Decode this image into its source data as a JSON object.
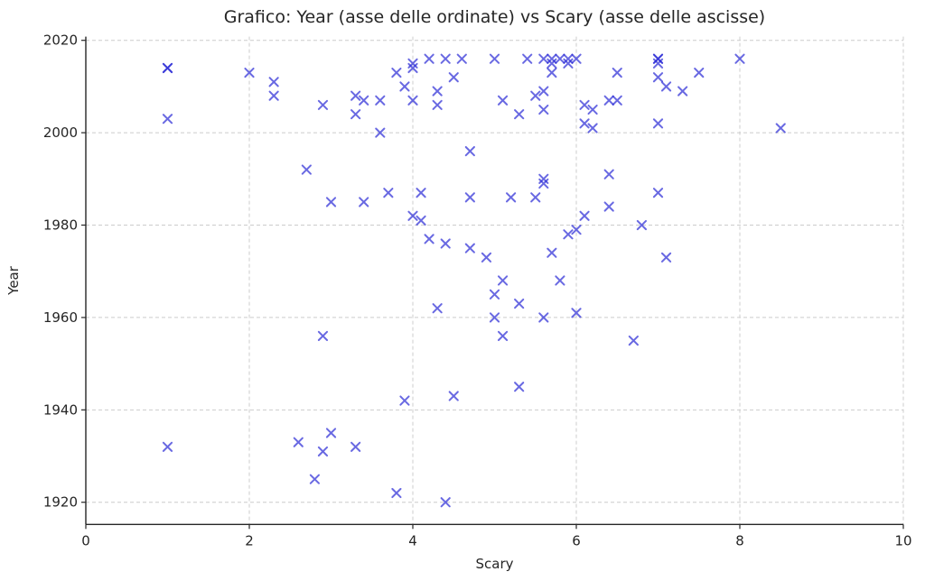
{
  "chart_data": {
    "type": "scatter",
    "title": "Grafico: Year (asse delle ordinate) vs Scary (asse delle ascisse)",
    "xlabel": "Scary",
    "ylabel": "Year",
    "xlim": [
      0,
      10
    ],
    "ylim": [
      1915.2,
      2020.8
    ],
    "xticks": [
      0,
      2,
      4,
      6,
      8,
      10
    ],
    "yticks": [
      1920,
      1940,
      1960,
      1980,
      2000,
      2020
    ],
    "grid": true,
    "grid_style": "dashed",
    "legend_position": "none",
    "marker": "x",
    "marker_color": "#2a2ad6",
    "marker_opacity": 0.7,
    "points": [
      [
        1,
        2014
      ],
      [
        1,
        2014
      ],
      [
        1,
        2003
      ],
      [
        2,
        2013
      ],
      [
        2.3,
        2011
      ],
      [
        2.3,
        2008
      ],
      [
        2.7,
        1992
      ],
      [
        2.9,
        2006
      ],
      [
        3,
        1985
      ],
      [
        3.4,
        1985
      ],
      [
        3.3,
        2008
      ],
      [
        3.4,
        2007
      ],
      [
        3.6,
        2007
      ],
      [
        3.3,
        2004
      ],
      [
        3.6,
        2000
      ],
      [
        3.7,
        1987
      ],
      [
        3.8,
        2013
      ],
      [
        3.9,
        2010
      ],
      [
        4,
        2015
      ],
      [
        4,
        2014
      ],
      [
        4,
        2007
      ],
      [
        4.1,
        1987
      ],
      [
        4,
        1982
      ],
      [
        4.1,
        1981
      ],
      [
        4.2,
        2016
      ],
      [
        4.2,
        1977
      ],
      [
        4.3,
        2009
      ],
      [
        4.3,
        2006
      ],
      [
        4.3,
        1962
      ],
      [
        4.4,
        2016
      ],
      [
        4.4,
        1976
      ],
      [
        4.4,
        1920
      ],
      [
        4.5,
        2012
      ],
      [
        4.5,
        1943
      ],
      [
        4.6,
        2016
      ],
      [
        4.7,
        1996
      ],
      [
        4.7,
        1986
      ],
      [
        4.7,
        1975
      ],
      [
        4.9,
        1973
      ],
      [
        5,
        2016
      ],
      [
        5,
        1965
      ],
      [
        5,
        1960
      ],
      [
        5.1,
        2007
      ],
      [
        5.1,
        1968
      ],
      [
        5.1,
        1956
      ],
      [
        5.2,
        1986
      ],
      [
        5.3,
        2004
      ],
      [
        5.3,
        1963
      ],
      [
        5.3,
        1945
      ],
      [
        5.4,
        2016
      ],
      [
        5.5,
        2008
      ],
      [
        5.5,
        1986
      ],
      [
        5.6,
        2016
      ],
      [
        5.6,
        2009
      ],
      [
        5.6,
        2005
      ],
      [
        5.6,
        1990
      ],
      [
        5.6,
        1989
      ],
      [
        5.6,
        1960
      ],
      [
        5.7,
        2016
      ],
      [
        5.7,
        2015
      ],
      [
        5.7,
        2013
      ],
      [
        5.7,
        1974
      ],
      [
        5.8,
        2016
      ],
      [
        5.8,
        1968
      ],
      [
        5.9,
        2016
      ],
      [
        5.9,
        2015
      ],
      [
        5.9,
        1978
      ],
      [
        6,
        2016
      ],
      [
        6,
        1979
      ],
      [
        6,
        1961
      ],
      [
        6.1,
        2006
      ],
      [
        6.1,
        2002
      ],
      [
        6.1,
        1982
      ],
      [
        6.2,
        2005
      ],
      [
        6.2,
        2001
      ],
      [
        6.4,
        2007
      ],
      [
        6.4,
        1991
      ],
      [
        6.4,
        1984
      ],
      [
        6.5,
        2007
      ],
      [
        6.5,
        2013
      ],
      [
        6.7,
        1955
      ],
      [
        6.8,
        1980
      ],
      [
        7,
        2016
      ],
      [
        7,
        2016
      ],
      [
        7,
        2015
      ],
      [
        7,
        2012
      ],
      [
        7,
        2002
      ],
      [
        7,
        1987
      ],
      [
        7.1,
        2010
      ],
      [
        7.1,
        1973
      ],
      [
        7.3,
        2009
      ],
      [
        7.5,
        2013
      ],
      [
        8,
        2016
      ],
      [
        8.5,
        2001
      ],
      [
        1,
        1932
      ],
      [
        2.6,
        1933
      ],
      [
        2.8,
        1925
      ],
      [
        2.9,
        1956
      ],
      [
        2.9,
        1931
      ],
      [
        3,
        1935
      ],
      [
        3.3,
        1932
      ],
      [
        3.8,
        1922
      ],
      [
        3.9,
        1942
      ]
    ]
  },
  "style": {
    "grid_color": "#cccccc",
    "spine_color": "#262626",
    "background": "#ffffff"
  }
}
